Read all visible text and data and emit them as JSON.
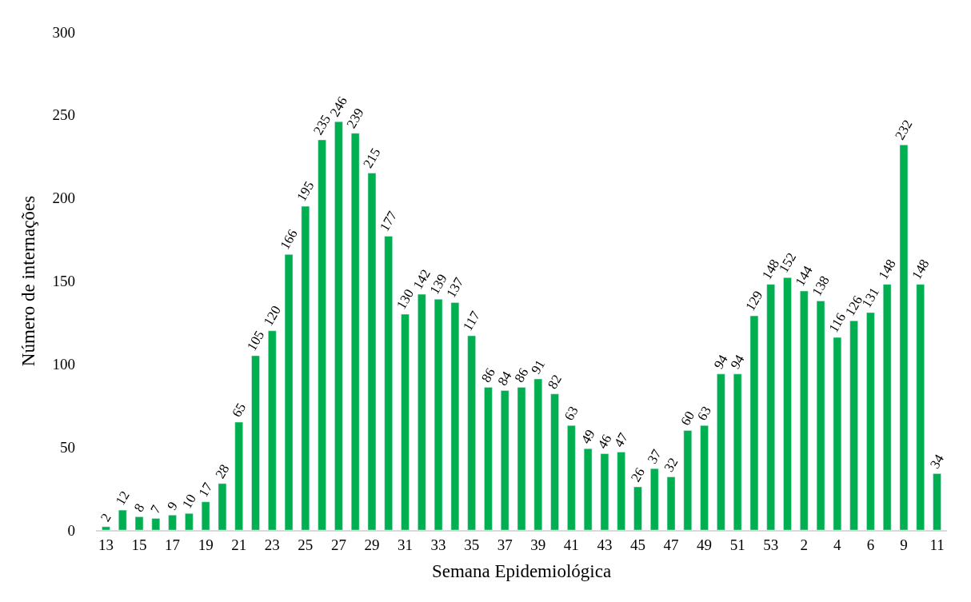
{
  "chart_data": {
    "type": "bar",
    "xlabel": "Semana Epidemiológica",
    "ylabel": "Número de internações",
    "categories": [
      "13",
      null,
      "15",
      null,
      "17",
      null,
      "19",
      null,
      "21",
      null,
      "23",
      null,
      "25",
      null,
      "27",
      null,
      "29",
      null,
      "31",
      null,
      "33",
      null,
      "35",
      null,
      "37",
      null,
      "39",
      null,
      "41",
      null,
      "43",
      null,
      "45",
      null,
      "47",
      null,
      "49",
      null,
      "51",
      null,
      "53",
      null,
      "2",
      null,
      "4",
      null,
      "6",
      null,
      "9",
      null,
      "11"
    ],
    "values": [
      2,
      12,
      8,
      7,
      9,
      10,
      17,
      28,
      65,
      105,
      120,
      166,
      195,
      235,
      246,
      239,
      215,
      177,
      130,
      142,
      139,
      137,
      117,
      86,
      84,
      86,
      91,
      82,
      63,
      49,
      46,
      47,
      26,
      37,
      32,
      60,
      63,
      94,
      94,
      129,
      148,
      152,
      144,
      138,
      116,
      126,
      131,
      148,
      232,
      148,
      34
    ],
    "color": "#00b050",
    "ylim": [
      0,
      300
    ],
    "yticks": [
      0,
      50,
      100,
      150,
      200,
      250,
      300
    ],
    "grid": false,
    "data_labels": true
  }
}
